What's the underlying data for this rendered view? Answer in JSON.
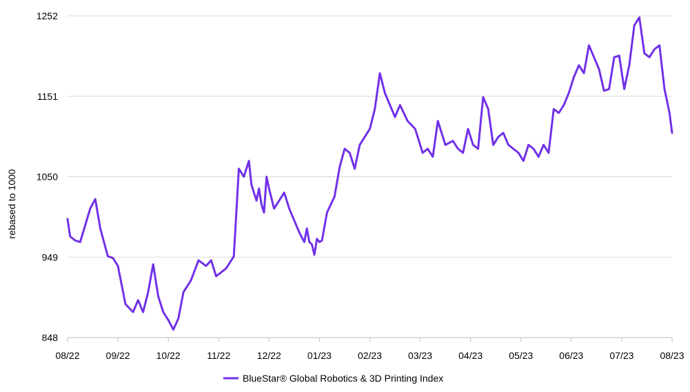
{
  "chart_data": {
    "type": "line",
    "title": "",
    "xlabel": "",
    "ylabel": "rebased to 1000",
    "ylim": [
      848,
      1252
    ],
    "y_ticks": [
      "848",
      "949",
      "1050",
      "1151",
      "1252"
    ],
    "x_ticks": [
      "08/22",
      "09/22",
      "10/22",
      "11/22",
      "12/22",
      "01/23",
      "02/23",
      "03/23",
      "04/23",
      "05/23",
      "06/23",
      "07/23",
      "08/23"
    ],
    "grid": "horizontal",
    "legend_position": "bottom",
    "colors": {
      "series": "#7030E8",
      "grid": "#D9D9D9",
      "axis": "#BFBFBF"
    },
    "series": [
      {
        "name": "BlueStar® Global Robotics & 3D Printing Index",
        "x": [
          0,
          0.05,
          0.15,
          0.25,
          0.45,
          0.55,
          0.65,
          0.8,
          0.9,
          1.0,
          1.15,
          1.3,
          1.4,
          1.5,
          1.6,
          1.7,
          1.8,
          1.9,
          2.0,
          2.1,
          2.2,
          2.3,
          2.45,
          2.6,
          2.75,
          2.85,
          2.95,
          3.05,
          3.15,
          3.3,
          3.4,
          3.5,
          3.6,
          3.65,
          3.7,
          3.75,
          3.8,
          3.85,
          3.9,
          3.95,
          4.0,
          4.1,
          4.2,
          4.3,
          4.4,
          4.5,
          4.6,
          4.7,
          4.75,
          4.8,
          4.85,
          4.9,
          4.95,
          5.0,
          5.05,
          5.15,
          5.3,
          5.4,
          5.5,
          5.6,
          5.7,
          5.8,
          5.9,
          6.0,
          6.1,
          6.2,
          6.3,
          6.4,
          6.5,
          6.6,
          6.75,
          6.9,
          7.05,
          7.15,
          7.25,
          7.35,
          7.5,
          7.65,
          7.75,
          7.85,
          7.95,
          8.05,
          8.15,
          8.25,
          8.35,
          8.45,
          8.55,
          8.65,
          8.75,
          8.85,
          8.95,
          9.05,
          9.15,
          9.25,
          9.35,
          9.45,
          9.55,
          9.65,
          9.75,
          9.85,
          9.95,
          10.05,
          10.15,
          10.25,
          10.35,
          10.45,
          10.55,
          10.65,
          10.75,
          10.85,
          10.95,
          11.05,
          11.15,
          11.25,
          11.35,
          11.45,
          11.55,
          11.65,
          11.75,
          11.85,
          11.95,
          12.0
        ],
        "values": [
          997,
          975,
          970,
          968,
          1010,
          1022,
          985,
          950,
          948,
          938,
          890,
          880,
          895,
          880,
          905,
          940,
          900,
          880,
          870,
          858,
          872,
          905,
          920,
          945,
          938,
          945,
          925,
          930,
          935,
          950,
          1060,
          1050,
          1070,
          1040,
          1030,
          1020,
          1035,
          1015,
          1005,
          1050,
          1035,
          1010,
          1020,
          1030,
          1010,
          995,
          980,
          968,
          985,
          968,
          965,
          952,
          972,
          968,
          970,
          1005,
          1025,
          1062,
          1085,
          1080,
          1060,
          1090,
          1100,
          1110,
          1135,
          1180,
          1155,
          1140,
          1125,
          1140,
          1120,
          1110,
          1080,
          1085,
          1075,
          1120,
          1090,
          1095,
          1085,
          1080,
          1110,
          1090,
          1085,
          1150,
          1135,
          1090,
          1100,
          1105,
          1090,
          1085,
          1080,
          1070,
          1090,
          1085,
          1075,
          1090,
          1080,
          1135,
          1130,
          1140,
          1155,
          1175,
          1190,
          1180,
          1215,
          1200,
          1185,
          1158,
          1160,
          1200,
          1202,
          1160,
          1190,
          1240,
          1250,
          1205,
          1200,
          1210,
          1215,
          1160,
          1130,
          1105
        ]
      }
    ]
  }
}
